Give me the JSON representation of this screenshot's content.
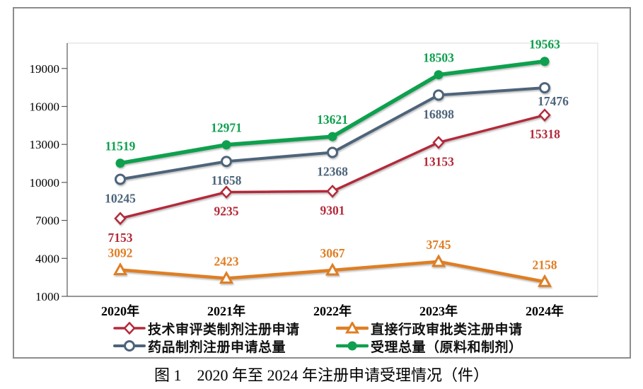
{
  "figure": {
    "caption": "图 1　2020 年至 2024 年注册申请受理情况（件）"
  },
  "chart_data": {
    "type": "line",
    "title": "",
    "xlabel": "",
    "ylabel": "",
    "categories": [
      "2020年",
      "2021年",
      "2022年",
      "2023年",
      "2024年"
    ],
    "series": [
      {
        "name": "技术审评类制剂注册申请",
        "color": "#b32a3a",
        "marker": "diamond-open",
        "line_width": 3.5,
        "label_side": "below",
        "values": [
          7153,
          9235,
          9301,
          13153,
          15318
        ]
      },
      {
        "name": "直接行政审批类注册申请",
        "color": "#df7e24",
        "marker": "triangle-open",
        "line_width": 4.5,
        "label_side": "above",
        "values": [
          3092,
          2423,
          3067,
          3745,
          2158
        ]
      },
      {
        "name": "药品制剂注册申请总量",
        "color": "#4d647a",
        "marker": "circle-open",
        "line_width": 4,
        "label_side": "below",
        "values": [
          10245,
          11658,
          12368,
          16898,
          17476
        ]
      },
      {
        "name": "受理总量（原料和制剂）",
        "color": "#0ea04e",
        "marker": "circle-filled",
        "line_width": 5.5,
        "label_side": "above",
        "values": [
          11519,
          12971,
          13621,
          18503,
          19563
        ]
      }
    ],
    "y_ticks": [
      1000,
      4000,
      7000,
      10000,
      13000,
      16000,
      19000
    ],
    "ylim": [
      1000,
      21000
    ],
    "grid": false,
    "legend_position": "bottom-two-columns",
    "label_offsets": {
      "2": {
        "4": [
          12,
          -8
        ]
      }
    }
  }
}
